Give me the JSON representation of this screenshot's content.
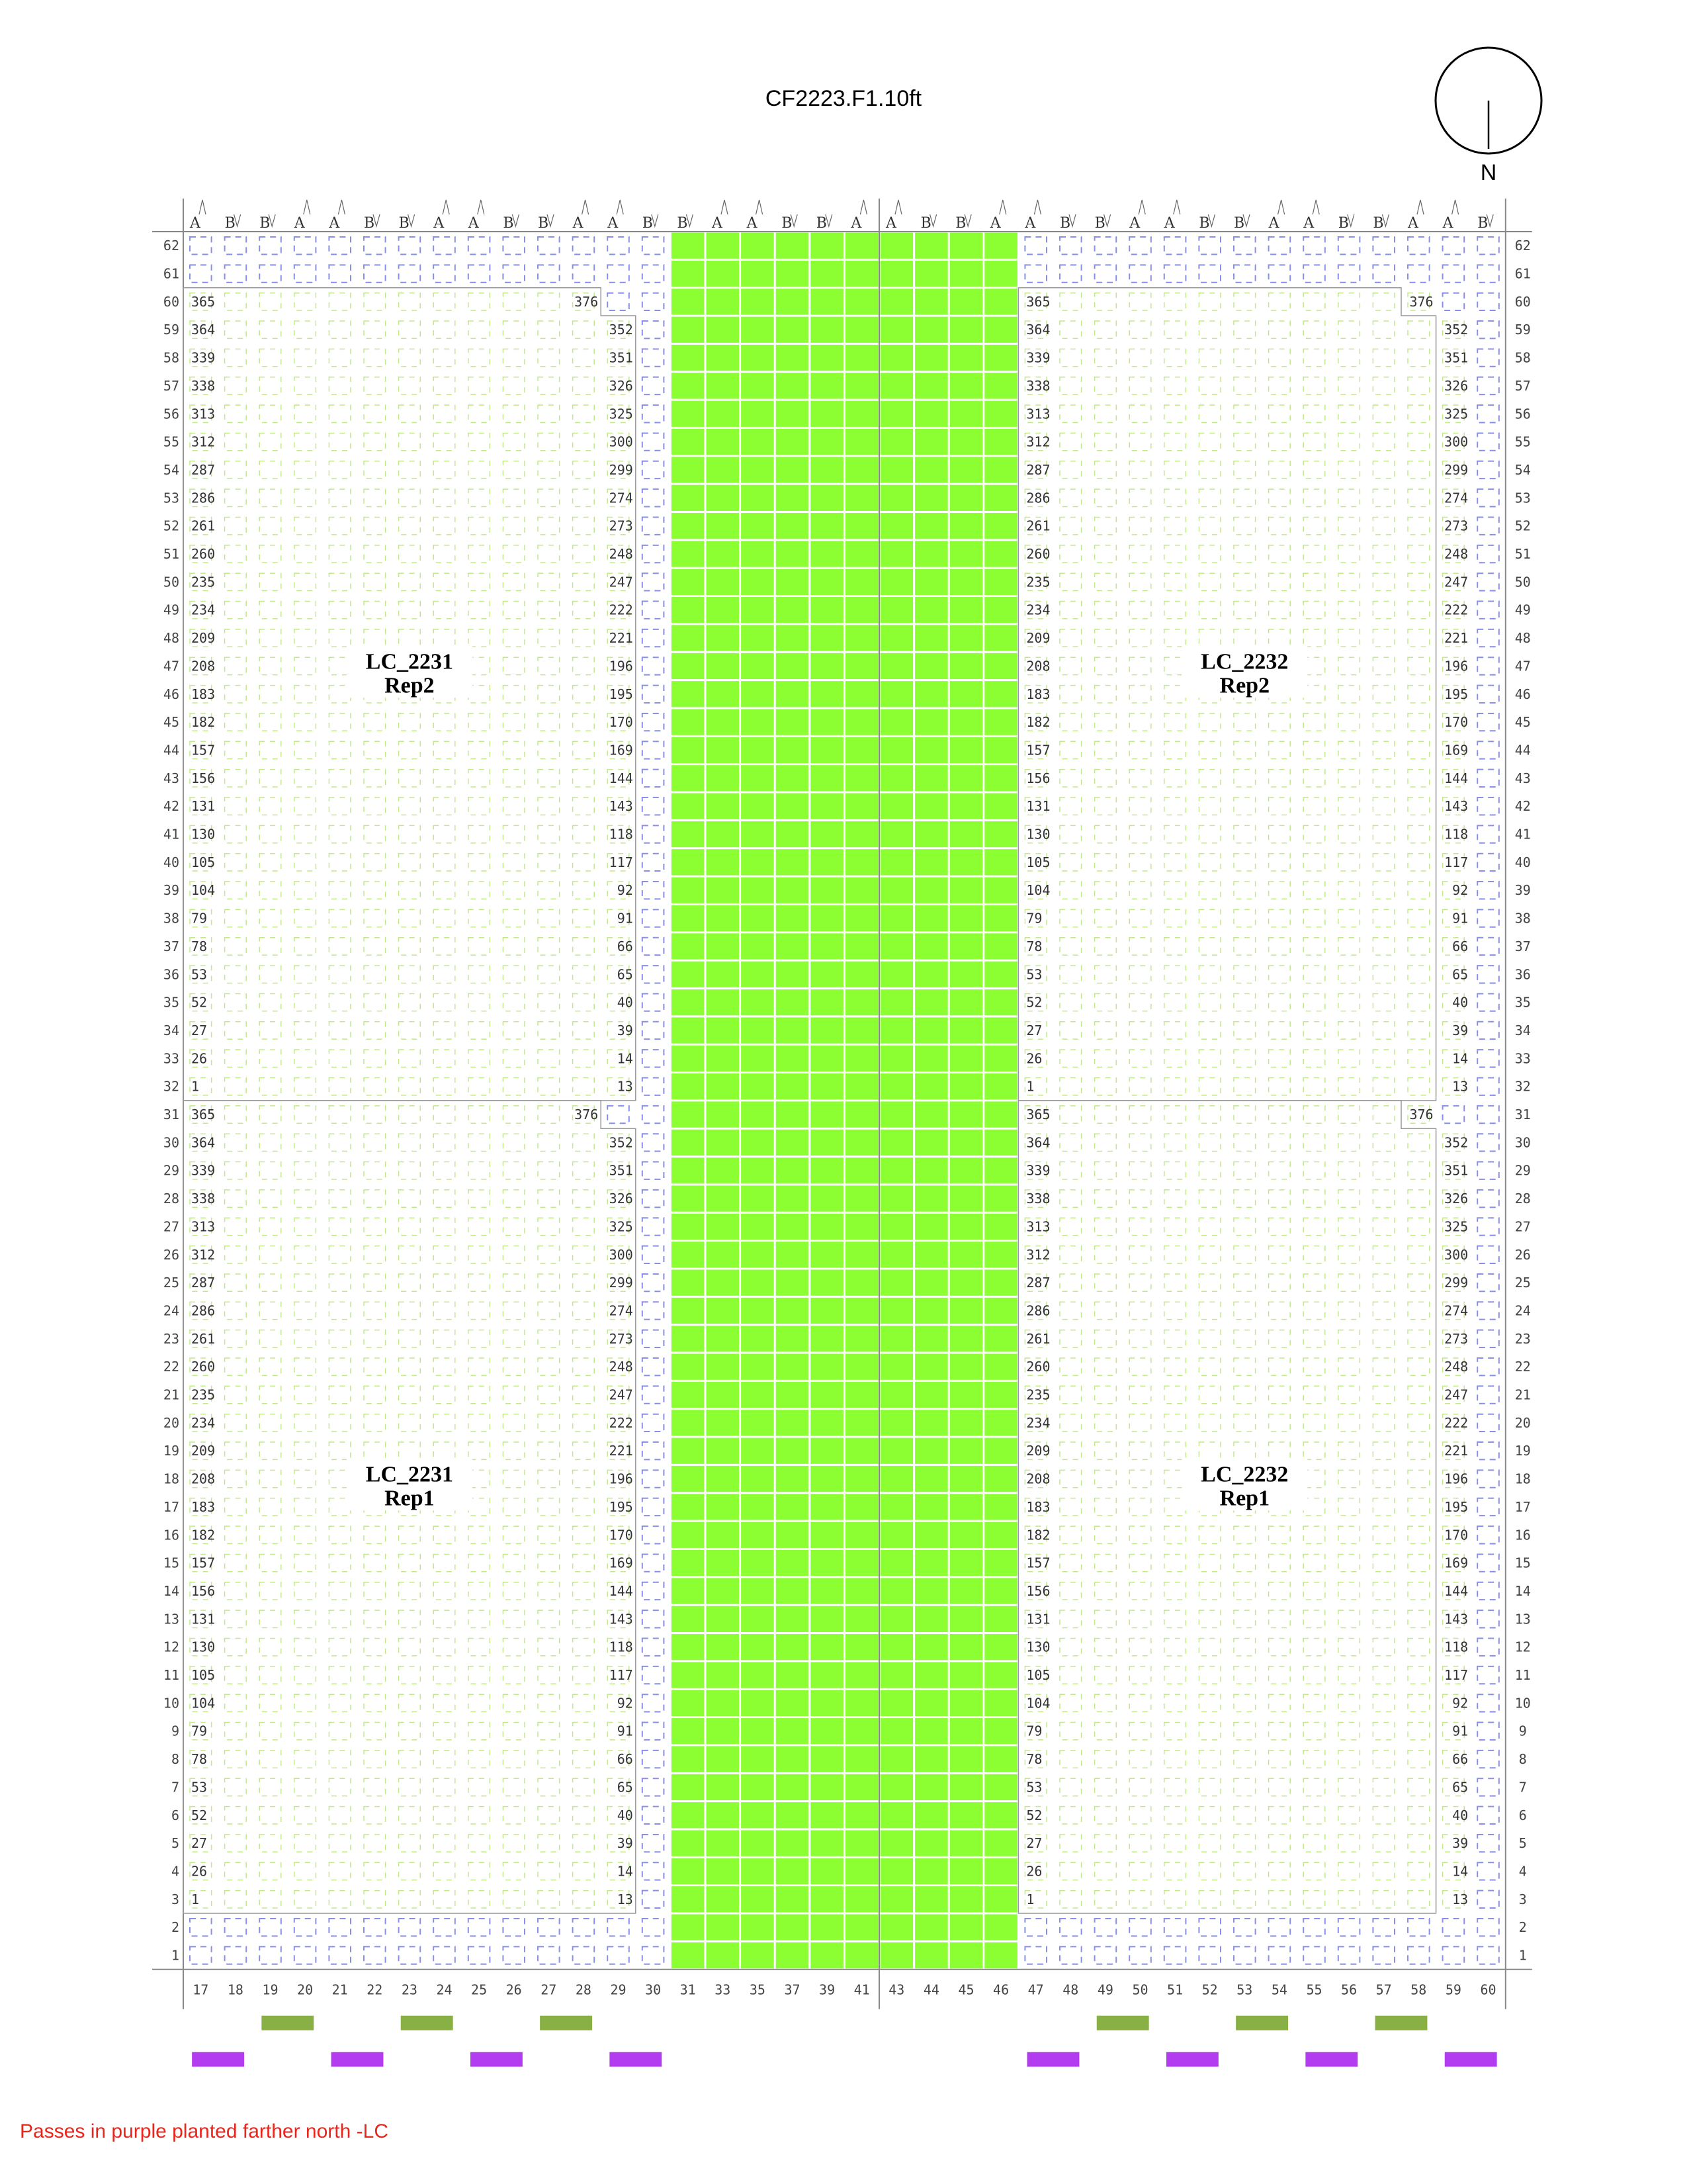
{
  "title": "CF2223.F1.10ft",
  "north_label": "N",
  "note": "Passes in purple planted farther north -LC",
  "colors": {
    "filler_green": "#8cff33",
    "plot_outline": "#c2e88a",
    "border_plot": "#8a8fe6",
    "pass_green": "#88b044",
    "pass_purple": "#b43cf0",
    "grid_line": "#888888"
  },
  "columns": [
    "17",
    "18",
    "19",
    "20",
    "21",
    "22",
    "23",
    "24",
    "25",
    "26",
    "27",
    "28",
    "29",
    "30",
    "31",
    "33",
    "35",
    "37",
    "39",
    "41",
    "43",
    "44",
    "45",
    "46",
    "47",
    "48",
    "49",
    "50",
    "51",
    "52",
    "53",
    "54",
    "55",
    "56",
    "57",
    "58",
    "59",
    "60"
  ],
  "ab_labels": [
    "A",
    "B",
    "B",
    "A",
    "A",
    "B",
    "B",
    "A",
    "A",
    "B",
    "B",
    "A",
    "A",
    "B",
    "B",
    "A",
    "A",
    "B",
    "B",
    "A",
    "A",
    "B",
    "B",
    "A",
    "A",
    "B",
    "B",
    "A",
    "A",
    "B",
    "B",
    "A",
    "A",
    "B",
    "B",
    "A",
    "A",
    "B"
  ],
  "row_numbers": [
    "62",
    "61",
    "60",
    "59",
    "58",
    "57",
    "56",
    "55",
    "54",
    "53",
    "52",
    "51",
    "50",
    "49",
    "48",
    "47",
    "46",
    "45",
    "44",
    "43",
    "42",
    "41",
    "40",
    "39",
    "38",
    "37",
    "36",
    "35",
    "34",
    "33",
    "32",
    "31",
    "30",
    "29",
    "28",
    "27",
    "26",
    "25",
    "24",
    "23",
    "22",
    "21",
    "20",
    "19",
    "18",
    "17",
    "16",
    "15",
    "14",
    "13",
    "12",
    "11",
    "10",
    "9",
    "8",
    "7",
    "6",
    "5",
    "4",
    "3",
    "2",
    "1"
  ],
  "plot_left": [
    "365",
    "364",
    "339",
    "338",
    "313",
    "312",
    "287",
    "286",
    "261",
    "260",
    "235",
    "234",
    "209",
    "208",
    "183",
    "182",
    "157",
    "156",
    "131",
    "130",
    "105",
    "104",
    "79",
    "78",
    "53",
    "52",
    "27",
    "26",
    "1"
  ],
  "plot_right": [
    "376",
    "352",
    "351",
    "326",
    "325",
    "300",
    "299",
    "274",
    "273",
    "248",
    "247",
    "222",
    "221",
    "196",
    "195",
    "170",
    "169",
    "144",
    "143",
    "118",
    "117",
    "92",
    "91",
    "66",
    "65",
    "40",
    "39",
    "14",
    "13"
  ],
  "blocks": [
    {
      "name": "LC_2231",
      "rep": "Rep2"
    },
    {
      "name": "LC_2232",
      "rep": "Rep2"
    },
    {
      "name": "LC_2231",
      "rep": "Rep1"
    },
    {
      "name": "LC_2232",
      "rep": "Rep1"
    }
  ],
  "passes_green": [
    "19-20",
    "23-24",
    "27-28",
    "49-50",
    "53-54",
    "57-58"
  ],
  "passes_purple": [
    "17-18",
    "21-22",
    "25-26",
    "29-30",
    "47-48",
    "51-52",
    "55-56",
    "59-60"
  ]
}
